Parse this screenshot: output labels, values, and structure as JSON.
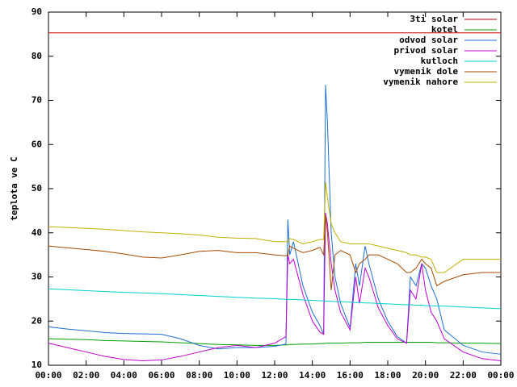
{
  "chart_data": {
    "type": "line",
    "ylabel": "teplota ve C",
    "x": [
      0,
      1,
      2,
      3,
      4,
      5,
      6,
      7,
      8,
      9,
      10,
      11,
      12,
      12.6,
      12.7,
      12.8,
      13,
      13.5,
      14,
      14.4,
      14.6,
      14.7,
      14.8,
      15,
      15.2,
      15.5,
      16,
      16.3,
      16.5,
      16.8,
      17,
      17.5,
      18,
      18.5,
      19,
      19.2,
      19.5,
      19.8,
      20,
      20.3,
      20.6,
      21,
      22,
      23,
      24
    ],
    "xlim": [
      0,
      24
    ],
    "xticks": [
      {
        "value": 0,
        "label": "00:00"
      },
      {
        "value": 2,
        "label": "02:00"
      },
      {
        "value": 4,
        "label": "04:00"
      },
      {
        "value": 6,
        "label": "06:00"
      },
      {
        "value": 8,
        "label": "08:00"
      },
      {
        "value": 10,
        "label": "10:00"
      },
      {
        "value": 12,
        "label": "12:00"
      },
      {
        "value": 14,
        "label": "14:00"
      },
      {
        "value": 16,
        "label": "16:00"
      },
      {
        "value": 18,
        "label": "18:00"
      },
      {
        "value": 20,
        "label": "20:00"
      },
      {
        "value": 22,
        "label": "22:00"
      },
      {
        "value": 24,
        "label": "00:00"
      }
    ],
    "ylim": [
      10,
      90
    ],
    "yticks": [
      10,
      20,
      30,
      40,
      50,
      60,
      70,
      80,
      90
    ],
    "grid": false,
    "legend": "top-right",
    "series": [
      {
        "name": "3ti solar",
        "color": "#cc0000",
        "values": [
          85.3,
          85.3,
          85.3,
          85.3,
          85.3,
          85.3,
          85.3,
          85.3,
          85.3,
          85.3,
          85.3,
          85.3,
          85.3,
          85.3,
          85.3,
          85.3,
          85.3,
          85.3,
          85.3,
          85.3,
          85.3,
          85.3,
          85.3,
          85.3,
          85.3,
          85.3,
          85.3,
          85.3,
          85.3,
          85.3,
          85.3,
          85.3,
          85.3,
          85.3,
          85.3,
          85.3,
          85.3,
          85.3,
          85.3,
          85.3,
          85.3,
          85.3,
          85.3,
          85.3,
          85.3
        ]
      },
      {
        "name": "kotel",
        "color": "#00a000",
        "values": [
          16,
          15.9,
          15.8,
          15.6,
          15.5,
          15.4,
          15.3,
          15.1,
          14.9,
          14.7,
          14.6,
          14.5,
          14.5,
          14.6,
          14.6,
          14.7,
          14.7,
          14.8,
          14.8,
          14.9,
          14.9,
          15,
          15,
          15,
          15,
          15,
          15.1,
          15.1,
          15.1,
          15.2,
          15.2,
          15.2,
          15.2,
          15.2,
          15.2,
          15.2,
          15.2,
          15.2,
          15.2,
          15.2,
          15.1,
          15.1,
          15,
          15,
          14.9
        ]
      },
      {
        "name": "odvod solar",
        "color": "#1e6fd0",
        "values": [
          18.7,
          18.2,
          17.8,
          17.4,
          17.2,
          17.1,
          17,
          16,
          14.5,
          13.7,
          14,
          14,
          14.3,
          14.8,
          43,
          35,
          38,
          28,
          22,
          19,
          17,
          73.5,
          65,
          40,
          30,
          24,
          18.5,
          33,
          28,
          37,
          33,
          25,
          20,
          16.5,
          15,
          30,
          28,
          33,
          32,
          28,
          25,
          18,
          14.5,
          13,
          12.5
        ]
      },
      {
        "name": "privod solar",
        "color": "#c000d0",
        "values": [
          15,
          14,
          13,
          12,
          11.3,
          11,
          11.2,
          12,
          13,
          14,
          14.5,
          14,
          15,
          16.5,
          35,
          33,
          34,
          26,
          20,
          17.5,
          17,
          44.5,
          42,
          33,
          27,
          22,
          18,
          30,
          24,
          32,
          30,
          23,
          19,
          16,
          15,
          27,
          25,
          33,
          27,
          22,
          20,
          16,
          13,
          11.5,
          11
        ]
      },
      {
        "name": "kutloch",
        "color": "#00d0d0",
        "values": [
          27.3,
          27.1,
          26.9,
          26.7,
          26.5,
          26.4,
          26.2,
          26,
          25.8,
          25.6,
          25.4,
          25.2,
          25.1,
          24.9,
          24.9,
          24.9,
          24.9,
          24.8,
          24.7,
          24.6,
          24.6,
          24.5,
          24.5,
          24.5,
          24.4,
          24.4,
          24.3,
          24.2,
          24.2,
          24.1,
          24.1,
          24,
          23.9,
          23.8,
          23.7,
          23.7,
          23.6,
          23.6,
          23.5,
          23.5,
          23.4,
          23.4,
          23.2,
          23,
          22.8
        ]
      },
      {
        "name": "vymenik dole",
        "color": "#a84a00",
        "values": [
          37,
          36.6,
          36.2,
          35.8,
          35.2,
          34.5,
          34.3,
          35,
          35.8,
          36,
          35.5,
          35.5,
          35,
          34.8,
          35,
          37,
          36.5,
          35.5,
          36,
          36.7,
          35,
          44,
          40,
          27,
          35,
          36,
          35,
          31,
          33,
          34,
          35,
          35,
          34,
          33,
          31,
          31,
          32,
          34,
          33,
          32,
          28,
          29,
          30.5,
          31,
          31
        ]
      },
      {
        "name": "vymenik nahore",
        "color": "#c0b000",
        "values": [
          41.4,
          41.2,
          41,
          40.8,
          40.5,
          40.2,
          40,
          39.8,
          39.5,
          39,
          38.8,
          38.7,
          38,
          38,
          38,
          38.7,
          38.5,
          37.5,
          38,
          38.5,
          38.5,
          51.5,
          48,
          42,
          40,
          38,
          37.5,
          37.5,
          37.5,
          37.5,
          37.5,
          37,
          36.5,
          36,
          35.5,
          35,
          35,
          34.5,
          34.5,
          34,
          31,
          31,
          34,
          34,
          34
        ]
      }
    ]
  }
}
